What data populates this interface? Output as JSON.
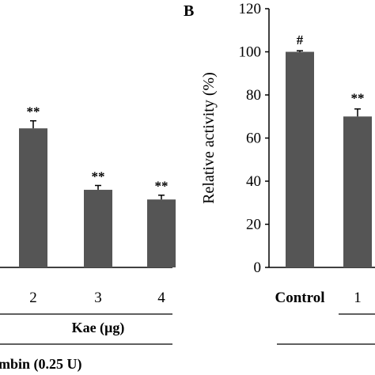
{
  "chart_data": [
    {
      "panel_label": "",
      "type": "bar",
      "categories": [
        "2",
        "3",
        "4"
      ],
      "values": [
        64.5,
        36.0,
        31.5
      ],
      "errors": [
        3.5,
        2.0,
        2.0
      ],
      "annotations": [
        "**",
        "**",
        "**"
      ],
      "ylim": [
        0,
        120
      ],
      "xlabel": "Kae (µg)",
      "group_label": "mbin (0.25 U)",
      "bar_color": "#555555"
    },
    {
      "panel_label": "B",
      "type": "bar",
      "categories": [
        "Control",
        "1"
      ],
      "values": [
        100.0,
        70.0
      ],
      "errors": [
        0.5,
        3.5
      ],
      "annotations": [
        "#",
        "**"
      ],
      "ylim": [
        0,
        120
      ],
      "yticks": [
        "0",
        "20",
        "40",
        "60",
        "80",
        "100",
        "120"
      ],
      "ylabel": "Relative activity (%)",
      "bar_color": "#555555"
    }
  ]
}
